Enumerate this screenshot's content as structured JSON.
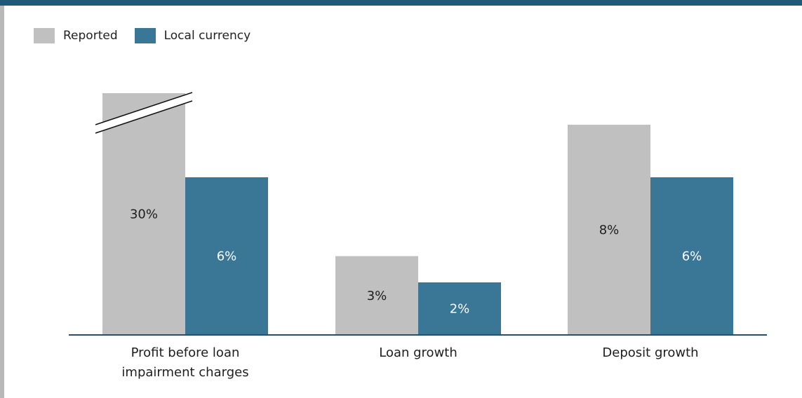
{
  "colors": {
    "reported": "#c0c0c0",
    "local": "#3a7797",
    "accent": "#1f5a79"
  },
  "legend": [
    {
      "label": "Reported",
      "color": "#c0c0c0"
    },
    {
      "label": "Local currency",
      "color": "#3a7797"
    }
  ],
  "chart_data": {
    "type": "bar",
    "categories": [
      [
        "Profit before loan",
        "impairment charges"
      ],
      [
        "Loan growth"
      ],
      [
        "Deposit growth"
      ]
    ],
    "series": [
      {
        "name": "Reported",
        "values": [
          30,
          3,
          8
        ],
        "labels": [
          "30%",
          "3%",
          "8%"
        ],
        "color": "#c0c0c0"
      },
      {
        "name": "Local currency",
        "values": [
          6,
          2,
          6
        ],
        "labels": [
          "6%",
          "2%",
          "6%"
        ],
        "color": "#3a7797"
      }
    ],
    "axis_break": {
      "category_index": 0,
      "series": "Reported"
    },
    "ylim": [
      0,
      9.5
    ],
    "grid": false,
    "legend_position": "top-left",
    "title": "",
    "xlabel": "",
    "ylabel": ""
  }
}
